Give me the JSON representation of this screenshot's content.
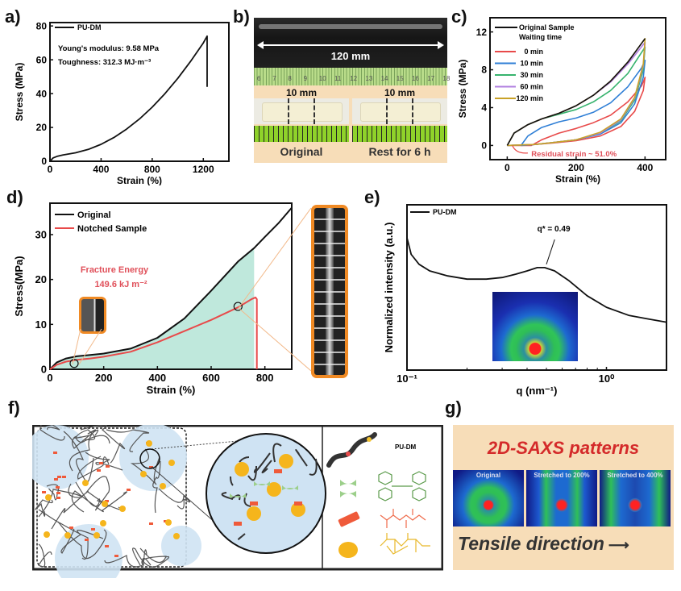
{
  "panel_labels": {
    "a": "a)",
    "b": "b)",
    "c": "c)",
    "d": "d)",
    "e": "e)",
    "f": "f)",
    "g": "g)"
  },
  "colors": {
    "black": "#111111",
    "red": "#e84a4a",
    "blue": "#2f7fd6",
    "green": "#37b36e",
    "purple": "#b07fe0",
    "gold": "#c9a227",
    "fill_area": "#bfe8dc",
    "orange_frame": "#f08a24",
    "annot_red": "#e0505a",
    "saxs_title": "#d42a2a",
    "panel_bg": "#f7ddb8"
  },
  "chart_data": [
    {
      "id": "a",
      "type": "line",
      "title": "",
      "xlabel": "Strain (%)",
      "ylabel": "Stress (MPa)",
      "xlim": [
        0,
        1400
      ],
      "ylim": [
        0,
        82
      ],
      "xticks": [
        0,
        400,
        800,
        1200
      ],
      "yticks": [
        0,
        20,
        40,
        60,
        80
      ],
      "legend": {
        "position": "top-left",
        "entries": [
          "PU-DM"
        ]
      },
      "annotations": [
        "Young's modulus: 9.58 MPa",
        "Toughness: 312.3 MJ·m⁻³"
      ],
      "series": [
        {
          "name": "PU-DM",
          "color": "#111111",
          "x": [
            0,
            25,
            60,
            100,
            200,
            300,
            400,
            500,
            600,
            700,
            800,
            900,
            1000,
            1100,
            1200,
            1230,
            1230
          ],
          "y": [
            0,
            2,
            3,
            3.7,
            5,
            7,
            10,
            14,
            19,
            25,
            32,
            40,
            49,
            59,
            70,
            74,
            44
          ]
        }
      ]
    },
    {
      "id": "c",
      "type": "line",
      "title": "",
      "xlabel": "Strain (%)",
      "ylabel": "Stress (MPa)",
      "xlim": [
        -50,
        460
      ],
      "ylim": [
        -1.5,
        13.5
      ],
      "xticks": [
        0,
        200,
        400
      ],
      "yticks": [
        0,
        4,
        8,
        12
      ],
      "legend": {
        "position": "top-left",
        "title": "Waiting time",
        "entries": [
          "Original Sample",
          "0 min",
          "10 min",
          "30 min",
          "60 min",
          "120 min"
        ]
      },
      "annotations": [
        "Residual strain ~ 51.0%"
      ],
      "series": [
        {
          "name": "Original Sample",
          "color": "#111111",
          "x": [
            0,
            20,
            60,
            100,
            150,
            200,
            250,
            300,
            350,
            400
          ],
          "y": [
            0,
            1.3,
            2.2,
            2.8,
            3.4,
            4.2,
            5.3,
            6.8,
            8.8,
            11.3
          ]
        },
        {
          "name": "0 min",
          "color": "#e84a4a",
          "x": [
            0,
            70,
            100,
            150,
            200,
            250,
            300,
            350,
            390,
            400,
            395,
            370,
            330,
            270,
            200,
            130,
            80,
            51,
            20,
            0
          ],
          "y": [
            0,
            0,
            0.6,
            1.3,
            1.8,
            2.4,
            3.2,
            4.6,
            6.3,
            7.2,
            5.8,
            3.6,
            2.0,
            1.0,
            0.5,
            0.25,
            0.1,
            0,
            0,
            0
          ]
        },
        {
          "name": "10 min",
          "color": "#2f7fd6",
          "x": [
            40,
            60,
            100,
            150,
            200,
            250,
            300,
            350,
            390,
            400,
            395,
            370,
            330,
            270,
            200,
            130,
            80,
            40
          ],
          "y": [
            0,
            1.0,
            1.9,
            2.5,
            2.9,
            3.5,
            4.5,
            6.2,
            8.2,
            9.0,
            7.2,
            4.4,
            2.4,
            1.2,
            0.6,
            0.3,
            0.1,
            0
          ]
        },
        {
          "name": "30 min",
          "color": "#37b36e",
          "x": [
            0,
            20,
            60,
            100,
            150,
            200,
            250,
            300,
            350,
            400,
            395,
            370,
            330,
            270,
            200,
            130,
            80,
            0
          ],
          "y": [
            0,
            1.3,
            2.2,
            2.8,
            3.3,
            3.8,
            4.6,
            5.8,
            7.6,
            10.4,
            8.0,
            4.8,
            2.6,
            1.3,
            0.6,
            0.3,
            0.1,
            0
          ]
        },
        {
          "name": "60 min",
          "color": "#b07fe0",
          "x": [
            0,
            20,
            60,
            100,
            150,
            200,
            250,
            300,
            350,
            400,
            395,
            370,
            330,
            270,
            200,
            130,
            80,
            0
          ],
          "y": [
            0,
            1.3,
            2.2,
            2.8,
            3.4,
            4.2,
            5.3,
            6.7,
            8.6,
            10.9,
            8.4,
            5.0,
            2.7,
            1.3,
            0.6,
            0.3,
            0.1,
            0
          ]
        },
        {
          "name": "120 min",
          "color": "#c9a227",
          "x": [
            0,
            20,
            60,
            100,
            150,
            200,
            250,
            300,
            350,
            400,
            395,
            370,
            330,
            270,
            200,
            130,
            80,
            0
          ],
          "y": [
            0,
            1.3,
            2.2,
            2.8,
            3.4,
            4.2,
            5.3,
            6.8,
            8.8,
            11.3,
            8.6,
            5.1,
            2.8,
            1.4,
            0.6,
            0.3,
            0.1,
            0
          ]
        }
      ]
    },
    {
      "id": "d",
      "type": "line",
      "title": "",
      "xlabel": "Strain (%)",
      "ylabel": "Stress(MPa)",
      "xlim": [
        0,
        900
      ],
      "ylim": [
        0,
        37
      ],
      "xticks": [
        0,
        200,
        400,
        600,
        800
      ],
      "yticks": [
        0,
        10,
        20,
        30
      ],
      "legend": {
        "position": "top-left",
        "entries": [
          "Original",
          "Notched Sample"
        ]
      },
      "annotations": [
        "Fracture Energy",
        "149.6 kJ m⁻²"
      ],
      "shaded_region": {
        "x_max": 760,
        "under_series": "Original"
      },
      "markers": [
        {
          "x": 90,
          "y": 1.3
        },
        {
          "x": 700,
          "y": 14
        }
      ],
      "series": [
        {
          "name": "Original",
          "color": "#111111",
          "x": [
            0,
            25,
            60,
            100,
            150,
            200,
            300,
            400,
            500,
            600,
            700,
            760,
            800,
            850,
            900
          ],
          "y": [
            0,
            1.5,
            2.4,
            2.9,
            3.2,
            3.5,
            4.6,
            7.0,
            11.3,
            17.5,
            24,
            27,
            29.5,
            32.5,
            36
          ]
        },
        {
          "name": "Notched Sample",
          "color": "#e84a4a",
          "x": [
            0,
            25,
            60,
            100,
            150,
            200,
            300,
            400,
            500,
            600,
            700,
            750,
            765,
            770,
            770
          ],
          "y": [
            0,
            1.0,
            1.7,
            2.1,
            2.4,
            2.8,
            3.9,
            6.0,
            8.5,
            11.0,
            13.8,
            15.6,
            16,
            15.6,
            0
          ]
        }
      ]
    },
    {
      "id": "e",
      "type": "line",
      "title": "",
      "xlabel": "q (nm⁻¹)",
      "ylabel": "Normalized intensity (a.u.)",
      "xscale": "log",
      "xlim": [
        0.1,
        2.0
      ],
      "ylim": [
        0,
        1
      ],
      "xticks": [
        0.1,
        1.0
      ],
      "xtick_labels": [
        "10⁻¹",
        "10⁰"
      ],
      "legend": {
        "position": "top-left",
        "entries": [
          "PU-DM"
        ]
      },
      "annotations": [
        "q* = 0.49"
      ],
      "series": [
        {
          "name": "PU-DM",
          "color": "#111111",
          "x": [
            0.1,
            0.105,
            0.115,
            0.13,
            0.16,
            0.2,
            0.25,
            0.3,
            0.35,
            0.4,
            0.45,
            0.49,
            0.55,
            0.65,
            0.8,
            1.0,
            1.3,
            1.6,
            2.0
          ],
          "y": [
            0.8,
            0.7,
            0.64,
            0.6,
            0.57,
            0.55,
            0.55,
            0.56,
            0.58,
            0.6,
            0.62,
            0.62,
            0.6,
            0.54,
            0.45,
            0.38,
            0.33,
            0.31,
            0.29
          ]
        }
      ]
    }
  ],
  "panel_b": {
    "scale_label": "120 mm",
    "ruler_numbers": [
      "6",
      "7",
      "8",
      "9",
      "10",
      "11",
      "12",
      "13",
      "14",
      "15",
      "16",
      "17",
      "18"
    ],
    "gauge_left": "10 mm",
    "gauge_right": "10 mm",
    "caption_left": "Original",
    "caption_right": "Rest for 6 h"
  },
  "panel_f": {
    "legend_title": "PU-DM"
  },
  "panel_g": {
    "title": "2D-SAXS patterns",
    "patterns": [
      "Original",
      "Stretched to 200%",
      "Stretched to 400%"
    ],
    "footer": "Tensile direction"
  }
}
